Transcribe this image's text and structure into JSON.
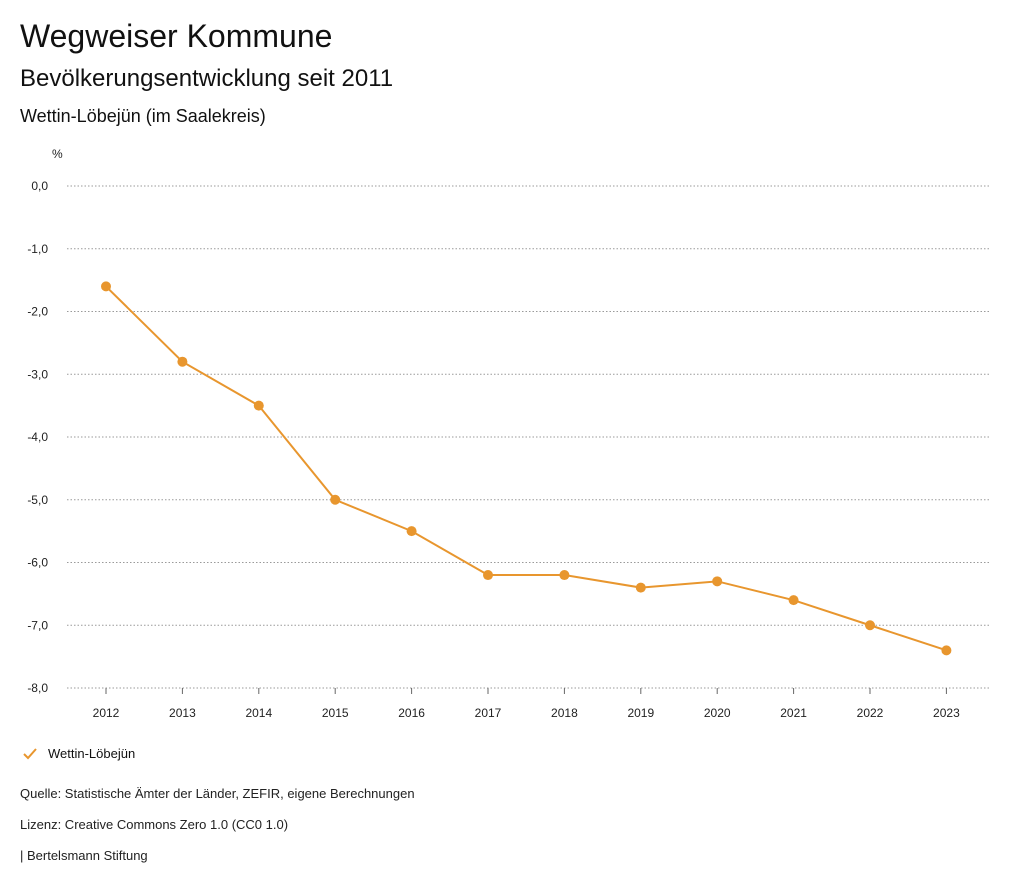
{
  "header": {
    "title": "Wegweiser Kommune",
    "subtitle": "Bevölkerungsentwicklung seit 2011",
    "region": "Wettin-Löbejün (im Saalekreis)"
  },
  "chart_data": {
    "type": "line",
    "ylabel": "%",
    "ylim": [
      -8.0,
      0.0
    ],
    "yticks": [
      0.0,
      -1.0,
      -2.0,
      -3.0,
      -4.0,
      -5.0,
      -6.0,
      -7.0,
      -8.0
    ],
    "ytick_labels": [
      "0,0",
      "-1,0",
      "-2,0",
      "-3,0",
      "-4,0",
      "-5,0",
      "-6,0",
      "-7,0",
      "-8,0"
    ],
    "categories": [
      "2012",
      "2013",
      "2014",
      "2015",
      "2016",
      "2017",
      "2018",
      "2019",
      "2020",
      "2021",
      "2022",
      "2023"
    ],
    "series": [
      {
        "name": "Wettin-Löbejün",
        "color": "#e8962e",
        "values": [
          -1.6,
          -2.8,
          -3.5,
          -5.0,
          -5.5,
          -6.2,
          -6.2,
          -6.4,
          -6.3,
          -6.6,
          -7.0,
          -7.4
        ]
      }
    ],
    "grid": true,
    "legend": "bottom-left"
  },
  "legend": {
    "label": "Wettin-Löbejün"
  },
  "footer": {
    "source": "Quelle: Statistische Ämter der Länder, ZEFIR, eigene Berechnungen",
    "license": "Lizenz: Creative Commons Zero 1.0 (CC0 1.0)",
    "publisher": "| Bertelsmann Stiftung"
  }
}
